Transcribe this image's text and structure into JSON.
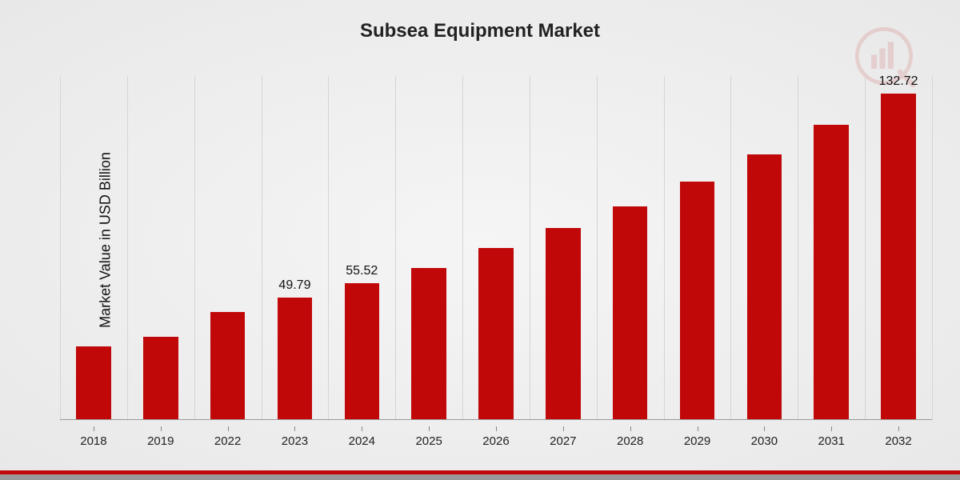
{
  "chart": {
    "type": "bar",
    "title": "Subsea Equipment Market",
    "title_fontsize": 24,
    "ylabel": "Market Value in USD Billion",
    "ylabel_fontsize": 18,
    "background_gradient": [
      "#f5f5f5",
      "#e8e8e8"
    ],
    "bar_color": "#c00808",
    "gridline_color": "#d5d5d5",
    "baseline_color": "#999999",
    "text_color": "#111111",
    "xtick_color": "#222222",
    "xtick_fontsize": 15,
    "data_label_fontsize": 16,
    "bar_width_ratio": 0.52,
    "ylim": [
      0,
      140
    ],
    "categories": [
      "2018",
      "2019",
      "2022",
      "2023",
      "2024",
      "2025",
      "2026",
      "2027",
      "2028",
      "2029",
      "2030",
      "2031",
      "2032"
    ],
    "values": [
      30,
      34,
      44,
      49.79,
      55.52,
      62,
      70,
      78,
      87,
      97,
      108,
      120,
      132.72
    ],
    "show_labels": [
      false,
      false,
      false,
      true,
      true,
      false,
      false,
      false,
      false,
      false,
      false,
      false,
      true
    ],
    "display_labels": [
      "",
      "",
      "",
      "49.79",
      "55.52",
      "",
      "",
      "",
      "",
      "",
      "",
      "",
      "132.72"
    ]
  },
  "watermark": {
    "color": "#c00808",
    "opacity": 0.12
  },
  "footer_stripe": {
    "red_color": "#c00808",
    "gray_color": "#999999",
    "red_height": 5,
    "gray_height": 7
  }
}
